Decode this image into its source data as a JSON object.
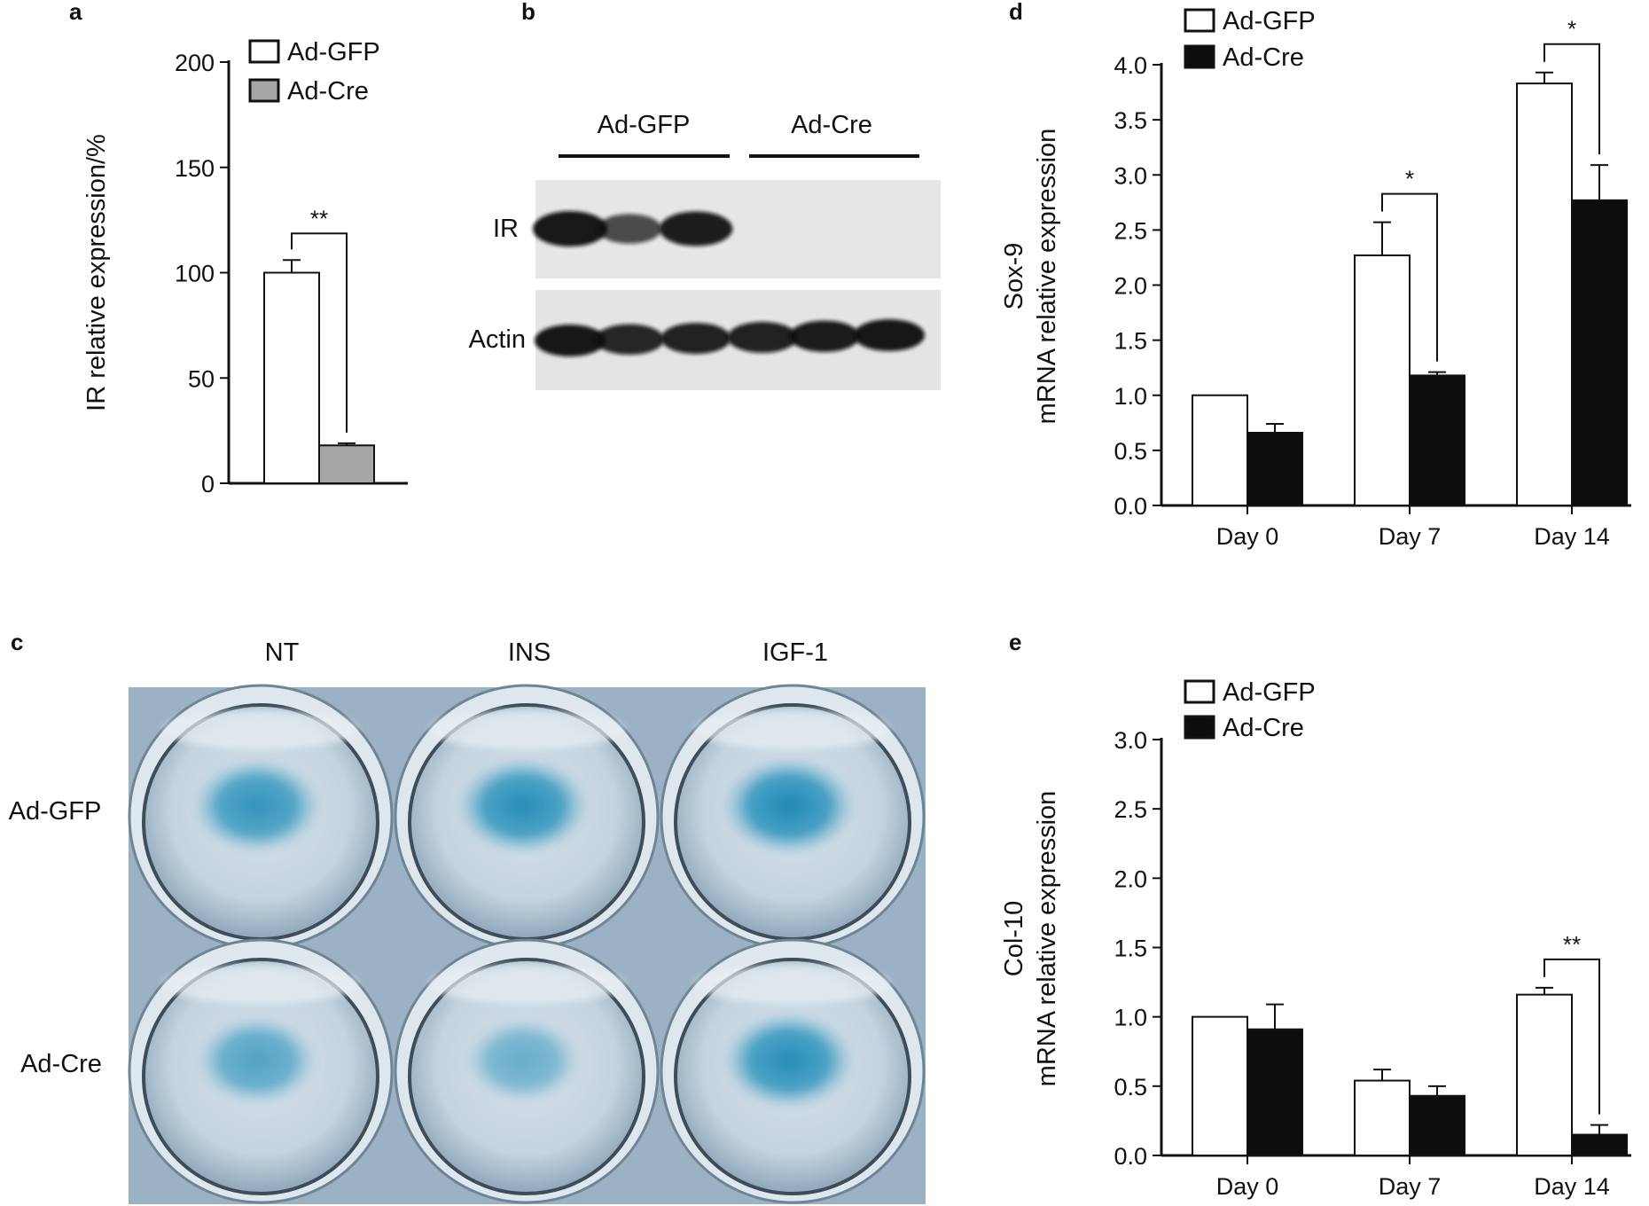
{
  "panels": {
    "a": "a",
    "b": "b",
    "c": "c",
    "d": "d",
    "e": "e"
  },
  "colors": {
    "ad_gfp_fill": "#ffffff",
    "ad_cre_fill_a": "#a6a6a6",
    "ad_cre_fill_de": "#0d0d0d",
    "stain_blue": "#1a86b3",
    "plate_bg": "#9eb4c6"
  },
  "chart_data": [
    {
      "panel": "a",
      "type": "bar",
      "categories": [
        ""
      ],
      "series": [
        {
          "name": "Ad-GFP",
          "values": [
            100
          ],
          "errors": [
            6
          ]
        },
        {
          "name": "Ad-Cre",
          "values": [
            18
          ],
          "errors": [
            1
          ]
        }
      ],
      "ylabel": "IR relative expression/%",
      "ylim": [
        0,
        200
      ],
      "yticks": [
        "0",
        "50",
        "100",
        "150",
        "200"
      ],
      "significance": [
        "**"
      ],
      "legend": "top-right",
      "grid": false
    },
    {
      "panel": "d",
      "type": "bar",
      "categories": [
        "Day 0",
        "Day 7",
        "Day 14"
      ],
      "series": [
        {
          "name": "Ad-GFP",
          "values": [
            1.0,
            2.27,
            3.83
          ],
          "errors": [
            0,
            0.3,
            0.1
          ]
        },
        {
          "name": "Ad-Cre",
          "values": [
            0.66,
            1.18,
            2.77
          ],
          "errors": [
            0.08,
            0.03,
            0.32
          ]
        }
      ],
      "ylabel_line1": "Sox-9",
      "ylabel_line2": "mRNA relative expression",
      "ylim": [
        0,
        4.0
      ],
      "yticks": [
        "0.0",
        "0.5",
        "1.0",
        "1.5",
        "2.0",
        "2.5",
        "3.0",
        "3.5",
        "4.0"
      ],
      "significance": [
        "",
        "*",
        "*"
      ],
      "legend": "top-left",
      "grid": false
    },
    {
      "panel": "e",
      "type": "bar",
      "categories": [
        "Day 0",
        "Day 7",
        "Day 14"
      ],
      "series": [
        {
          "name": "Ad-GFP",
          "values": [
            1.0,
            0.54,
            1.16
          ],
          "errors": [
            0,
            0.08,
            0.05
          ]
        },
        {
          "name": "Ad-Cre",
          "values": [
            0.91,
            0.43,
            0.15
          ],
          "errors": [
            0.18,
            0.07,
            0.07
          ]
        }
      ],
      "ylabel_line1": "Col-10",
      "ylabel_line2": "mRNA relative expression",
      "ylim": [
        0,
        3.0
      ],
      "yticks": [
        "0.0",
        "0.5",
        "1.0",
        "1.5",
        "2.0",
        "2.5",
        "3.0"
      ],
      "significance": [
        "",
        "",
        "**"
      ],
      "legend": "top-left",
      "grid": false
    }
  ],
  "blot": {
    "groups": [
      "Ad-GFP",
      "Ad-Cre"
    ],
    "rows": [
      "IR",
      "Actin"
    ],
    "ir_band_intensity": [
      1.0,
      0.6,
      0.95,
      0,
      0,
      0
    ],
    "actin_band_intensity": [
      1.0,
      0.85,
      0.9,
      0.9,
      0.95,
      1.0
    ]
  },
  "plate": {
    "columns": [
      "NT",
      "INS",
      "IGF-1"
    ],
    "rows": [
      "Ad-GFP",
      "Ad-Cre"
    ],
    "stain_level": [
      [
        0.8,
        0.9,
        0.95
      ],
      [
        0.55,
        0.35,
        0.9
      ]
    ]
  }
}
